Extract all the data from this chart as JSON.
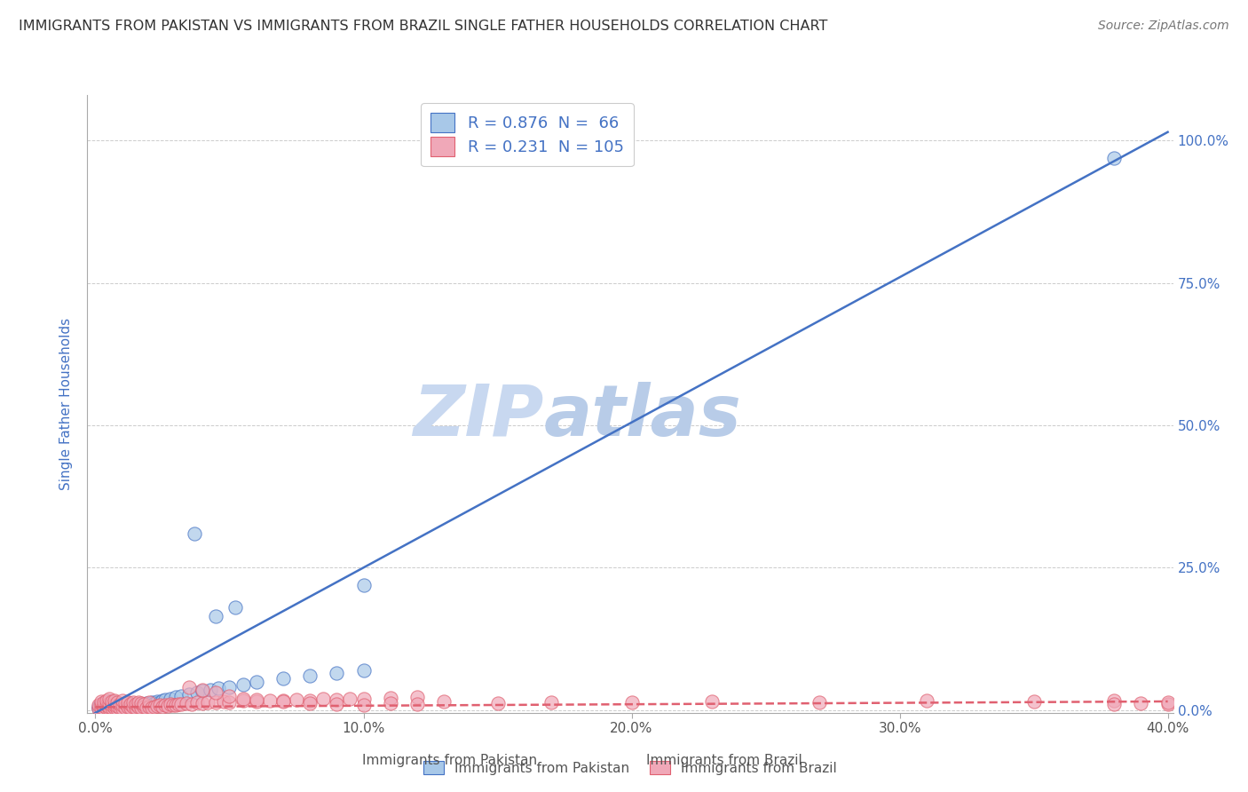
{
  "title": "IMMIGRANTS FROM PAKISTAN VS IMMIGRANTS FROM BRAZIL SINGLE FATHER HOUSEHOLDS CORRELATION CHART",
  "source": "Source: ZipAtlas.com",
  "xlabel_pakistan": "Immigrants from Pakistan",
  "xlabel_brazil": "Immigrants from Brazil",
  "ylabel": "Single Father Households",
  "xlim": [
    -0.003,
    0.402
  ],
  "ylim": [
    -0.005,
    1.08
  ],
  "x_ticks": [
    0.0,
    0.1,
    0.2,
    0.3,
    0.4
  ],
  "x_tick_labels": [
    "0.0%",
    "10.0%",
    "20.0%",
    "30.0%",
    "40.0%"
  ],
  "y_ticks_right": [
    0.0,
    0.25,
    0.5,
    0.75,
    1.0
  ],
  "y_tick_labels_right": [
    "0.0%",
    "25.0%",
    "50.0%",
    "75.0%",
    "100.0%"
  ],
  "pakistan_color": "#a8c8e8",
  "brazil_color": "#f0a8b8",
  "pakistan_line_color": "#4472c4",
  "brazil_line_color": "#e06070",
  "pakistan_R": 0.876,
  "pakistan_N": 66,
  "brazil_R": 0.231,
  "brazil_N": 105,
  "watermark_top": "ZIP",
  "watermark_bottom": "atlas",
  "watermark_color": "#d0dff0",
  "background_color": "#ffffff",
  "grid_color": "#cccccc",
  "title_color": "#333333",
  "pakistan_line_slope": 2.55,
  "pakistan_line_intercept": -0.005,
  "brazil_line_slope": 0.025,
  "brazil_line_intercept": 0.005,
  "pakistan_scatter_x": [
    0.001,
    0.001,
    0.002,
    0.002,
    0.002,
    0.003,
    0.003,
    0.003,
    0.003,
    0.004,
    0.004,
    0.004,
    0.005,
    0.005,
    0.005,
    0.005,
    0.006,
    0.006,
    0.006,
    0.007,
    0.007,
    0.007,
    0.008,
    0.008,
    0.009,
    0.009,
    0.01,
    0.01,
    0.011,
    0.011,
    0.012,
    0.012,
    0.013,
    0.014,
    0.015,
    0.016,
    0.017,
    0.018,
    0.019,
    0.02,
    0.021,
    0.022,
    0.023,
    0.024,
    0.025,
    0.026,
    0.028,
    0.03,
    0.032,
    0.035,
    0.038,
    0.04,
    0.043,
    0.046,
    0.05,
    0.055,
    0.06,
    0.07,
    0.08,
    0.09,
    0.1,
    0.037,
    0.045,
    0.052,
    0.1,
    0.38
  ],
  "pakistan_scatter_y": [
    0.002,
    0.005,
    0.003,
    0.007,
    0.01,
    0.002,
    0.004,
    0.008,
    0.012,
    0.003,
    0.006,
    0.01,
    0.002,
    0.005,
    0.009,
    0.015,
    0.003,
    0.007,
    0.012,
    0.004,
    0.008,
    0.013,
    0.003,
    0.009,
    0.004,
    0.01,
    0.005,
    0.011,
    0.006,
    0.012,
    0.005,
    0.013,
    0.006,
    0.008,
    0.007,
    0.009,
    0.01,
    0.008,
    0.012,
    0.01,
    0.013,
    0.012,
    0.015,
    0.014,
    0.016,
    0.018,
    0.02,
    0.022,
    0.025,
    0.028,
    0.03,
    0.033,
    0.035,
    0.038,
    0.04,
    0.045,
    0.05,
    0.055,
    0.06,
    0.065,
    0.07,
    0.31,
    0.165,
    0.18,
    0.22,
    0.97
  ],
  "brazil_scatter_x": [
    0.001,
    0.001,
    0.002,
    0.002,
    0.002,
    0.003,
    0.003,
    0.003,
    0.004,
    0.004,
    0.004,
    0.005,
    0.005,
    0.005,
    0.005,
    0.006,
    0.006,
    0.006,
    0.007,
    0.007,
    0.007,
    0.008,
    0.008,
    0.008,
    0.009,
    0.009,
    0.01,
    0.01,
    0.01,
    0.011,
    0.011,
    0.012,
    0.012,
    0.013,
    0.013,
    0.014,
    0.014,
    0.015,
    0.015,
    0.016,
    0.016,
    0.017,
    0.017,
    0.018,
    0.018,
    0.019,
    0.02,
    0.02,
    0.021,
    0.022,
    0.023,
    0.024,
    0.025,
    0.026,
    0.027,
    0.028,
    0.029,
    0.03,
    0.031,
    0.032,
    0.034,
    0.036,
    0.038,
    0.04,
    0.042,
    0.045,
    0.048,
    0.05,
    0.055,
    0.06,
    0.065,
    0.07,
    0.075,
    0.08,
    0.085,
    0.09,
    0.095,
    0.1,
    0.11,
    0.12,
    0.035,
    0.04,
    0.045,
    0.05,
    0.055,
    0.06,
    0.07,
    0.08,
    0.09,
    0.1,
    0.11,
    0.12,
    0.13,
    0.15,
    0.17,
    0.2,
    0.23,
    0.27,
    0.31,
    0.35,
    0.38,
    0.39,
    0.4,
    0.4,
    0.38
  ],
  "brazil_scatter_y": [
    0.003,
    0.008,
    0.004,
    0.01,
    0.015,
    0.003,
    0.007,
    0.013,
    0.004,
    0.009,
    0.016,
    0.003,
    0.006,
    0.012,
    0.02,
    0.004,
    0.008,
    0.015,
    0.004,
    0.009,
    0.017,
    0.003,
    0.007,
    0.014,
    0.004,
    0.01,
    0.003,
    0.008,
    0.016,
    0.004,
    0.012,
    0.005,
    0.013,
    0.004,
    0.011,
    0.005,
    0.014,
    0.004,
    0.01,
    0.005,
    0.013,
    0.004,
    0.012,
    0.005,
    0.011,
    0.004,
    0.005,
    0.013,
    0.004,
    0.006,
    0.007,
    0.008,
    0.006,
    0.009,
    0.007,
    0.01,
    0.008,
    0.009,
    0.01,
    0.011,
    0.012,
    0.011,
    0.013,
    0.012,
    0.014,
    0.013,
    0.015,
    0.014,
    0.016,
    0.015,
    0.017,
    0.016,
    0.018,
    0.017,
    0.019,
    0.018,
    0.02,
    0.019,
    0.021,
    0.022,
    0.04,
    0.035,
    0.03,
    0.025,
    0.02,
    0.018,
    0.015,
    0.012,
    0.01,
    0.008,
    0.012,
    0.01,
    0.015,
    0.012,
    0.014,
    0.013,
    0.015,
    0.014,
    0.016,
    0.015,
    0.017,
    0.012,
    0.01,
    0.013,
    0.011
  ]
}
